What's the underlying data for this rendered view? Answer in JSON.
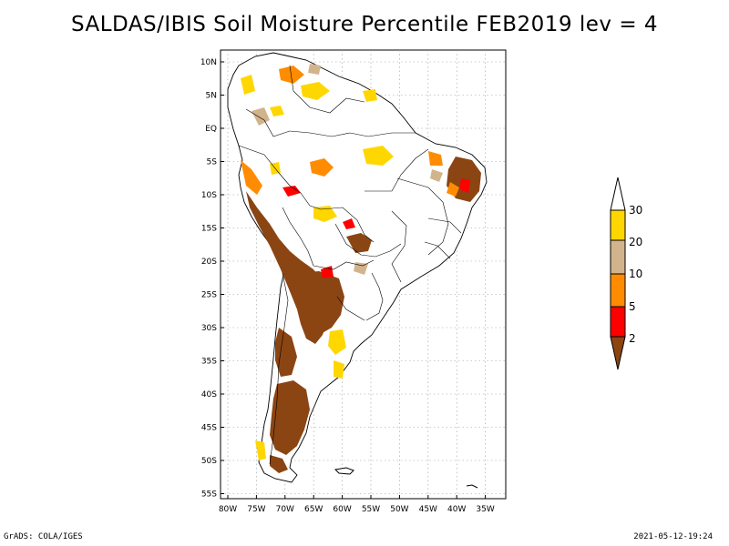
{
  "title": "SALDAS/IBIS Soil Moisture Percentile FEB2019 lev = 4",
  "footer": {
    "left": "GrADS: COLA/IGES",
    "right": "2021-05-12-19:24"
  },
  "map": {
    "region": "South America",
    "lat_labels": [
      "10N",
      "5N",
      "EQ",
      "5S",
      "10S",
      "15S",
      "20S",
      "25S",
      "30S",
      "35S",
      "40S",
      "45S",
      "50S",
      "55S"
    ],
    "lon_labels": [
      "80W",
      "75W",
      "70W",
      "65W",
      "60W",
      "55W",
      "50W",
      "45W",
      "40W",
      "35W"
    ],
    "grid": true
  },
  "legend": {
    "labels": [
      "30",
      "20",
      "10",
      "5",
      "2"
    ],
    "colors": {
      "above_30": "#ffffff",
      "20_30": "#ffd700",
      "10_20": "#d2b48c",
      "5_10": "#ff8c00",
      "2_5": "#ff0000",
      "below_2": "#8b4513"
    }
  }
}
